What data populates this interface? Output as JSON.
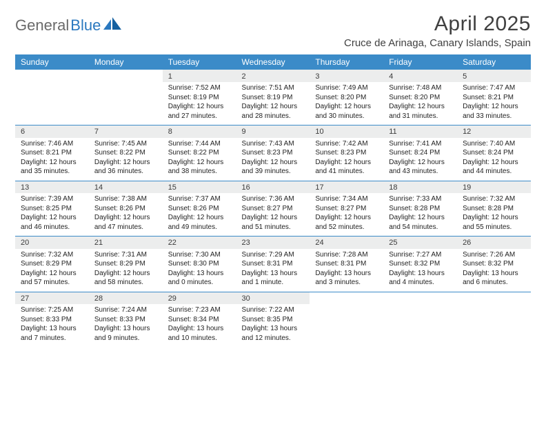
{
  "logo": {
    "part1": "General",
    "part2": "Blue"
  },
  "title": "April 2025",
  "subtitle": "Cruce de Arinaga, Canary Islands, Spain",
  "colors": {
    "header_bg": "#3b8bc8",
    "header_text": "#ffffff",
    "daynum_bg": "#eceded",
    "rule": "#3b8bc8",
    "title_color": "#404040",
    "logo_gray": "#6a6a6a",
    "logo_blue": "#2a78bf"
  },
  "day_headers": [
    "Sunday",
    "Monday",
    "Tuesday",
    "Wednesday",
    "Thursday",
    "Friday",
    "Saturday"
  ],
  "weeks": [
    [
      null,
      null,
      {
        "n": "1",
        "sr": "7:52 AM",
        "ss": "8:19 PM",
        "dl": "12 hours and 27 minutes."
      },
      {
        "n": "2",
        "sr": "7:51 AM",
        "ss": "8:19 PM",
        "dl": "12 hours and 28 minutes."
      },
      {
        "n": "3",
        "sr": "7:49 AM",
        "ss": "8:20 PM",
        "dl": "12 hours and 30 minutes."
      },
      {
        "n": "4",
        "sr": "7:48 AM",
        "ss": "8:20 PM",
        "dl": "12 hours and 31 minutes."
      },
      {
        "n": "5",
        "sr": "7:47 AM",
        "ss": "8:21 PM",
        "dl": "12 hours and 33 minutes."
      }
    ],
    [
      {
        "n": "6",
        "sr": "7:46 AM",
        "ss": "8:21 PM",
        "dl": "12 hours and 35 minutes."
      },
      {
        "n": "7",
        "sr": "7:45 AM",
        "ss": "8:22 PM",
        "dl": "12 hours and 36 minutes."
      },
      {
        "n": "8",
        "sr": "7:44 AM",
        "ss": "8:22 PM",
        "dl": "12 hours and 38 minutes."
      },
      {
        "n": "9",
        "sr": "7:43 AM",
        "ss": "8:23 PM",
        "dl": "12 hours and 39 minutes."
      },
      {
        "n": "10",
        "sr": "7:42 AM",
        "ss": "8:23 PM",
        "dl": "12 hours and 41 minutes."
      },
      {
        "n": "11",
        "sr": "7:41 AM",
        "ss": "8:24 PM",
        "dl": "12 hours and 43 minutes."
      },
      {
        "n": "12",
        "sr": "7:40 AM",
        "ss": "8:24 PM",
        "dl": "12 hours and 44 minutes."
      }
    ],
    [
      {
        "n": "13",
        "sr": "7:39 AM",
        "ss": "8:25 PM",
        "dl": "12 hours and 46 minutes."
      },
      {
        "n": "14",
        "sr": "7:38 AM",
        "ss": "8:26 PM",
        "dl": "12 hours and 47 minutes."
      },
      {
        "n": "15",
        "sr": "7:37 AM",
        "ss": "8:26 PM",
        "dl": "12 hours and 49 minutes."
      },
      {
        "n": "16",
        "sr": "7:36 AM",
        "ss": "8:27 PM",
        "dl": "12 hours and 51 minutes."
      },
      {
        "n": "17",
        "sr": "7:34 AM",
        "ss": "8:27 PM",
        "dl": "12 hours and 52 minutes."
      },
      {
        "n": "18",
        "sr": "7:33 AM",
        "ss": "8:28 PM",
        "dl": "12 hours and 54 minutes."
      },
      {
        "n": "19",
        "sr": "7:32 AM",
        "ss": "8:28 PM",
        "dl": "12 hours and 55 minutes."
      }
    ],
    [
      {
        "n": "20",
        "sr": "7:32 AM",
        "ss": "8:29 PM",
        "dl": "12 hours and 57 minutes."
      },
      {
        "n": "21",
        "sr": "7:31 AM",
        "ss": "8:29 PM",
        "dl": "12 hours and 58 minutes."
      },
      {
        "n": "22",
        "sr": "7:30 AM",
        "ss": "8:30 PM",
        "dl": "13 hours and 0 minutes."
      },
      {
        "n": "23",
        "sr": "7:29 AM",
        "ss": "8:31 PM",
        "dl": "13 hours and 1 minute."
      },
      {
        "n": "24",
        "sr": "7:28 AM",
        "ss": "8:31 PM",
        "dl": "13 hours and 3 minutes."
      },
      {
        "n": "25",
        "sr": "7:27 AM",
        "ss": "8:32 PM",
        "dl": "13 hours and 4 minutes."
      },
      {
        "n": "26",
        "sr": "7:26 AM",
        "ss": "8:32 PM",
        "dl": "13 hours and 6 minutes."
      }
    ],
    [
      {
        "n": "27",
        "sr": "7:25 AM",
        "ss": "8:33 PM",
        "dl": "13 hours and 7 minutes."
      },
      {
        "n": "28",
        "sr": "7:24 AM",
        "ss": "8:33 PM",
        "dl": "13 hours and 9 minutes."
      },
      {
        "n": "29",
        "sr": "7:23 AM",
        "ss": "8:34 PM",
        "dl": "13 hours and 10 minutes."
      },
      {
        "n": "30",
        "sr": "7:22 AM",
        "ss": "8:35 PM",
        "dl": "13 hours and 12 minutes."
      },
      null,
      null,
      null
    ]
  ],
  "labels": {
    "sunrise": "Sunrise: ",
    "sunset": "Sunset: ",
    "daylight": "Daylight: "
  }
}
